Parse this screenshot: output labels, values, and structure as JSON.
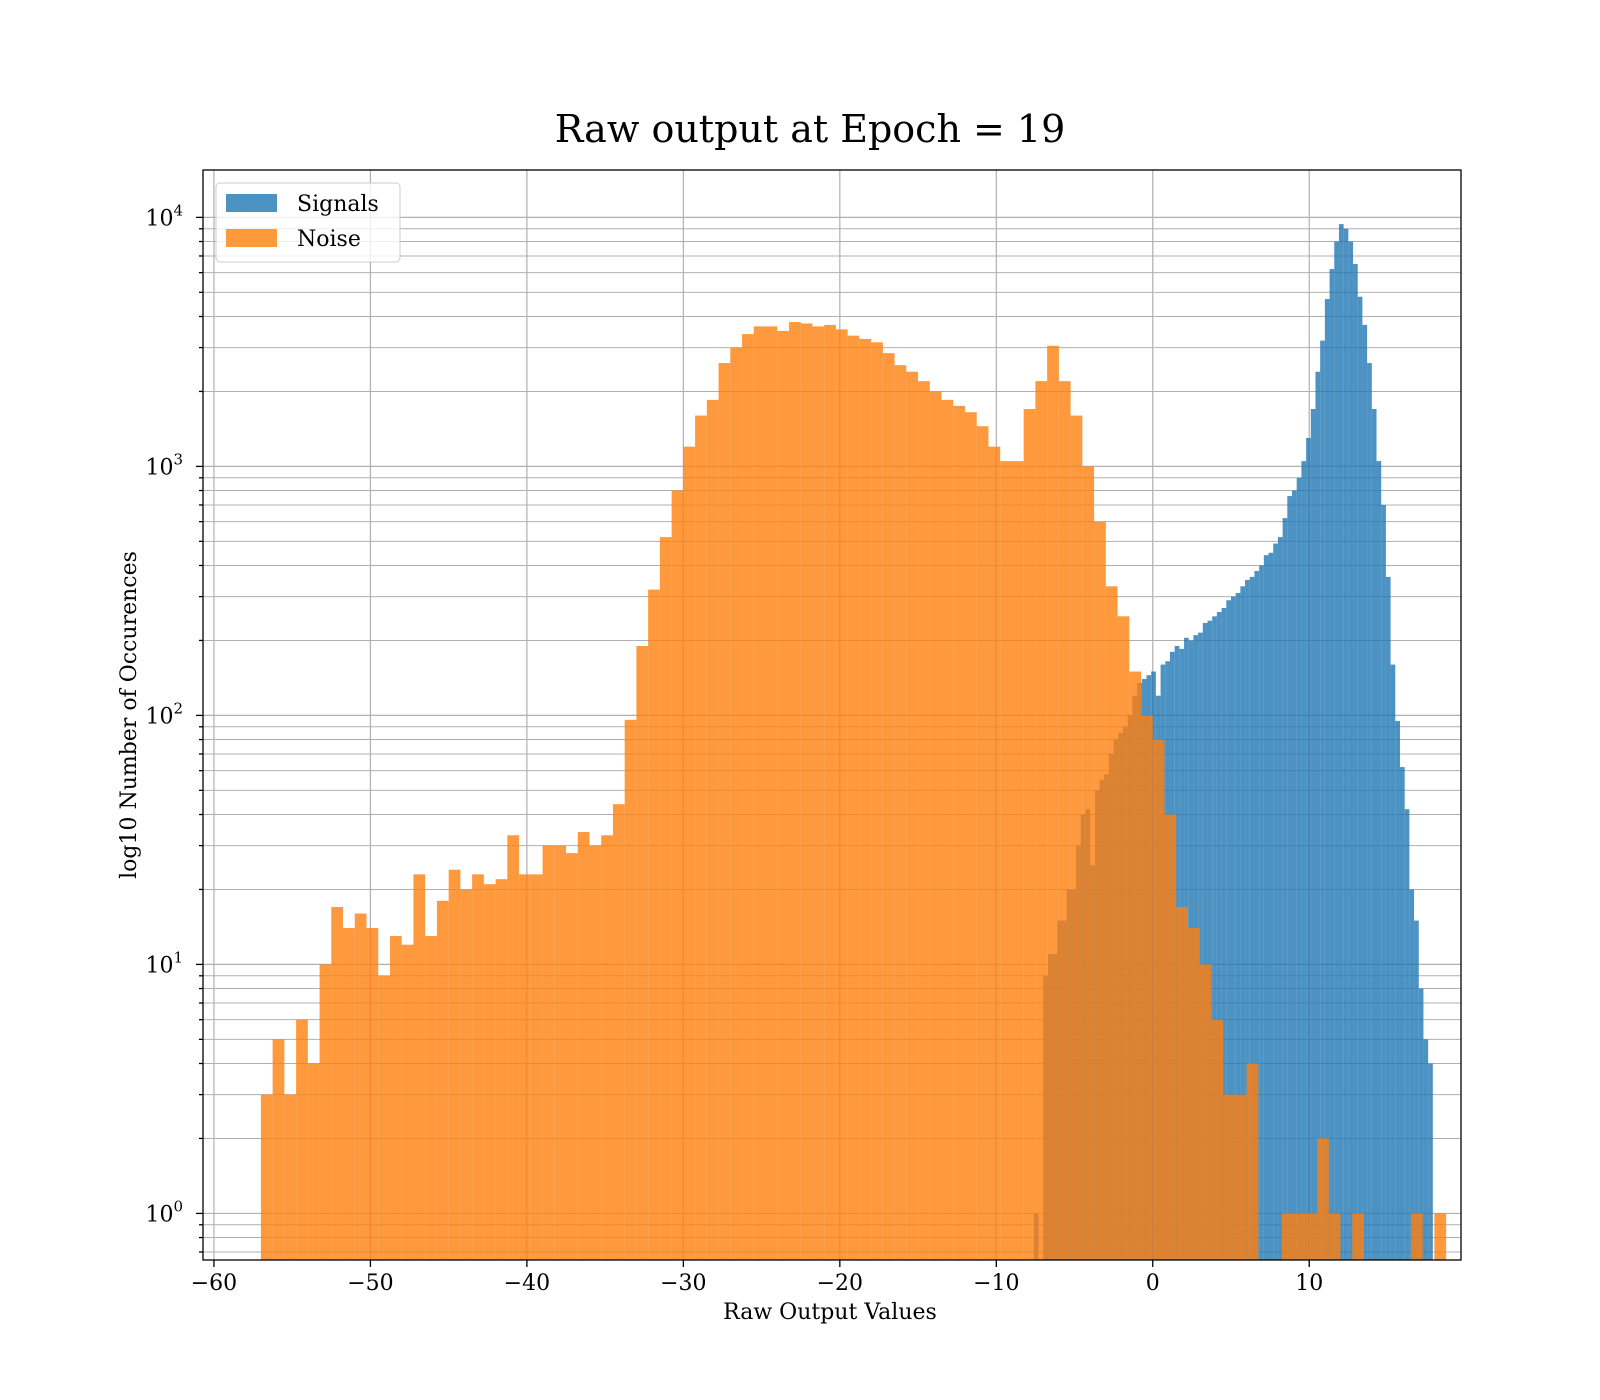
{
  "chart_data": {
    "type": "bar",
    "title": "Raw output at Epoch = 19",
    "xlabel": "Raw Output Values",
    "ylabel": "log10 Number of Occurences",
    "xlim": [
      -60.7,
      19.7
    ],
    "ylim": [
      0.65,
      15500
    ],
    "yscale": "log",
    "grid": true,
    "legend_position": "top-left",
    "x_ticks": [
      -60,
      -50,
      -40,
      -30,
      -20,
      -10,
      0,
      10
    ],
    "x_tick_labels": [
      "−60",
      "−50",
      "−40",
      "−30",
      "−20",
      "−10",
      "0",
      "10"
    ],
    "y_ticks": [
      {
        "value": 1,
        "base": "10",
        "exp": "0"
      },
      {
        "value": 10,
        "base": "10",
        "exp": "1"
      },
      {
        "value": 100,
        "base": "10",
        "exp": "2"
      },
      {
        "value": 1000,
        "base": "10",
        "exp": "3"
      },
      {
        "value": 10000,
        "base": "10",
        "exp": "4"
      }
    ],
    "series": [
      {
        "name": "Signals",
        "color": "#1f77b4",
        "opacity": 0.8,
        "bins": [
          [
            -7.6,
            -7.3,
            1
          ],
          [
            -7.0,
            -6.7,
            9
          ],
          [
            -6.7,
            -6.4,
            11
          ],
          [
            -6.4,
            -6.1,
            11
          ],
          [
            -6.1,
            -5.8,
            15
          ],
          [
            -5.8,
            -5.5,
            15
          ],
          [
            -5.5,
            -5.2,
            20
          ],
          [
            -5.2,
            -4.9,
            20
          ],
          [
            -4.9,
            -4.6,
            30
          ],
          [
            -4.6,
            -4.3,
            40
          ],
          [
            -4.3,
            -4.0,
            42
          ],
          [
            -4.0,
            -3.7,
            25
          ],
          [
            -3.7,
            -3.4,
            50
          ],
          [
            -3.4,
            -3.1,
            55
          ],
          [
            -3.1,
            -2.8,
            58
          ],
          [
            -2.8,
            -2.5,
            70
          ],
          [
            -2.5,
            -2.2,
            80
          ],
          [
            -2.2,
            -1.9,
            85
          ],
          [
            -1.9,
            -1.6,
            90
          ],
          [
            -1.6,
            -1.3,
            100
          ],
          [
            -1.3,
            -1.0,
            120
          ],
          [
            -1.0,
            -0.7,
            135
          ],
          [
            -0.7,
            -0.4,
            140
          ],
          [
            -0.4,
            -0.1,
            145
          ],
          [
            -0.1,
            0.2,
            150
          ],
          [
            0.2,
            0.5,
            120
          ],
          [
            0.5,
            0.8,
            160
          ],
          [
            0.8,
            1.1,
            165
          ],
          [
            1.1,
            1.4,
            180
          ],
          [
            1.4,
            1.7,
            190
          ],
          [
            1.7,
            2.0,
            185
          ],
          [
            2.0,
            2.3,
            205
          ],
          [
            2.3,
            2.6,
            200
          ],
          [
            2.6,
            2.9,
            210
          ],
          [
            2.9,
            3.2,
            215
          ],
          [
            3.2,
            3.5,
            235
          ],
          [
            3.5,
            3.8,
            240
          ],
          [
            3.8,
            4.1,
            250
          ],
          [
            4.1,
            4.4,
            260
          ],
          [
            4.4,
            4.7,
            270
          ],
          [
            4.7,
            5.0,
            290
          ],
          [
            5.0,
            5.3,
            300
          ],
          [
            5.3,
            5.6,
            310
          ],
          [
            5.6,
            5.9,
            330
          ],
          [
            5.9,
            6.2,
            350
          ],
          [
            6.2,
            6.5,
            360
          ],
          [
            6.5,
            6.8,
            380
          ],
          [
            6.8,
            7.1,
            400
          ],
          [
            7.1,
            7.4,
            440
          ],
          [
            7.4,
            7.7,
            450
          ],
          [
            7.7,
            8.0,
            490
          ],
          [
            8.0,
            8.3,
            520
          ],
          [
            8.3,
            8.6,
            620
          ],
          [
            8.6,
            8.9,
            760
          ],
          [
            8.9,
            9.2,
            800
          ],
          [
            9.2,
            9.5,
            900
          ],
          [
            9.5,
            9.8,
            1050
          ],
          [
            9.8,
            10.1,
            1300
          ],
          [
            10.1,
            10.4,
            1700
          ],
          [
            10.4,
            10.7,
            2400
          ],
          [
            10.7,
            11.0,
            3200
          ],
          [
            11.0,
            11.3,
            4700
          ],
          [
            11.3,
            11.6,
            6200
          ],
          [
            11.6,
            11.9,
            8000
          ],
          [
            11.9,
            12.2,
            9400
          ],
          [
            12.2,
            12.5,
            9000
          ],
          [
            12.5,
            12.8,
            8000
          ],
          [
            12.8,
            13.1,
            6500
          ],
          [
            13.1,
            13.4,
            4800
          ],
          [
            13.4,
            13.7,
            3700
          ],
          [
            13.7,
            14.0,
            2600
          ],
          [
            14.0,
            14.3,
            1700
          ],
          [
            14.3,
            14.6,
            1050
          ],
          [
            14.6,
            14.9,
            700
          ],
          [
            14.9,
            15.2,
            360
          ],
          [
            15.2,
            15.5,
            160
          ],
          [
            15.5,
            15.8,
            95
          ],
          [
            15.8,
            16.1,
            62
          ],
          [
            16.1,
            16.4,
            42
          ],
          [
            16.4,
            16.7,
            20
          ],
          [
            16.7,
            17.0,
            15
          ],
          [
            17.0,
            17.3,
            8
          ],
          [
            17.3,
            17.6,
            5
          ],
          [
            17.6,
            17.9,
            4
          ]
        ]
      },
      {
        "name": "Noise",
        "color": "#ff7f0e",
        "opacity": 0.8,
        "bins": [
          [
            -57.0,
            -56.25,
            3
          ],
          [
            -56.25,
            -55.5,
            5
          ],
          [
            -55.5,
            -54.75,
            3
          ],
          [
            -54.75,
            -54.0,
            6
          ],
          [
            -54.0,
            -53.25,
            4
          ],
          [
            -53.25,
            -52.5,
            10
          ],
          [
            -52.5,
            -51.75,
            17
          ],
          [
            -51.75,
            -51.0,
            14
          ],
          [
            -51.0,
            -50.25,
            16
          ],
          [
            -50.25,
            -49.5,
            14
          ],
          [
            -49.5,
            -48.75,
            9
          ],
          [
            -48.75,
            -48.0,
            13
          ],
          [
            -48.0,
            -47.25,
            12
          ],
          [
            -47.25,
            -46.5,
            23
          ],
          [
            -46.5,
            -45.75,
            13
          ],
          [
            -45.75,
            -45.0,
            18
          ],
          [
            -45.0,
            -44.25,
            24
          ],
          [
            -44.25,
            -43.5,
            20
          ],
          [
            -43.5,
            -42.75,
            23
          ],
          [
            -42.75,
            -42.0,
            21
          ],
          [
            -42.0,
            -41.25,
            22
          ],
          [
            -41.25,
            -40.5,
            33
          ],
          [
            -40.5,
            -39.75,
            23
          ],
          [
            -39.75,
            -39.0,
            23
          ],
          [
            -39.0,
            -38.25,
            30
          ],
          [
            -38.25,
            -37.5,
            30
          ],
          [
            -37.5,
            -36.75,
            28
          ],
          [
            -36.75,
            -36.0,
            34
          ],
          [
            -36.0,
            -35.25,
            30
          ],
          [
            -35.25,
            -34.5,
            33
          ],
          [
            -34.5,
            -33.75,
            44
          ],
          [
            -33.75,
            -33.0,
            96
          ],
          [
            -33.0,
            -32.25,
            190
          ],
          [
            -32.25,
            -31.5,
            320
          ],
          [
            -31.5,
            -30.75,
            520
          ],
          [
            -30.75,
            -30.0,
            800
          ],
          [
            -30.0,
            -29.25,
            1200
          ],
          [
            -29.25,
            -28.5,
            1600
          ],
          [
            -28.5,
            -27.75,
            1850
          ],
          [
            -27.75,
            -27.0,
            2600
          ],
          [
            -27.0,
            -26.25,
            3000
          ],
          [
            -26.25,
            -25.5,
            3400
          ],
          [
            -25.5,
            -24.75,
            3650
          ],
          [
            -24.75,
            -24.0,
            3650
          ],
          [
            -24.0,
            -23.25,
            3500
          ],
          [
            -23.25,
            -22.5,
            3800
          ],
          [
            -22.5,
            -21.75,
            3750
          ],
          [
            -21.75,
            -21.0,
            3650
          ],
          [
            -21.0,
            -20.25,
            3700
          ],
          [
            -20.25,
            -19.5,
            3550
          ],
          [
            -19.5,
            -18.75,
            3350
          ],
          [
            -18.75,
            -18.0,
            3250
          ],
          [
            -18.0,
            -17.25,
            3150
          ],
          [
            -17.25,
            -16.5,
            2850
          ],
          [
            -16.5,
            -15.75,
            2550
          ],
          [
            -15.75,
            -15.0,
            2400
          ],
          [
            -15.0,
            -14.25,
            2200
          ],
          [
            -14.25,
            -13.5,
            2000
          ],
          [
            -13.5,
            -12.75,
            1850
          ],
          [
            -12.75,
            -12.0,
            1750
          ],
          [
            -12.0,
            -11.25,
            1650
          ],
          [
            -11.25,
            -10.5,
            1450
          ],
          [
            -10.5,
            -9.75,
            1200
          ],
          [
            -9.75,
            -9.0,
            1050
          ],
          [
            -9.0,
            -8.25,
            1050
          ],
          [
            -8.25,
            -7.5,
            1700
          ],
          [
            -7.5,
            -6.75,
            2200
          ],
          [
            -6.75,
            -6.0,
            3050
          ],
          [
            -6.0,
            -5.25,
            2200
          ],
          [
            -5.25,
            -4.5,
            1600
          ],
          [
            -4.5,
            -3.75,
            1000
          ],
          [
            -3.75,
            -3.0,
            600
          ],
          [
            -3.0,
            -2.25,
            330
          ],
          [
            -2.25,
            -1.5,
            250
          ],
          [
            -1.5,
            -0.75,
            150
          ],
          [
            -0.75,
            0.0,
            100
          ],
          [
            0.0,
            0.75,
            80
          ],
          [
            0.75,
            1.5,
            40
          ],
          [
            1.5,
            2.25,
            17
          ],
          [
            2.25,
            3.0,
            14
          ],
          [
            3.0,
            3.75,
            10
          ],
          [
            3.75,
            4.5,
            6
          ],
          [
            4.5,
            5.25,
            3
          ],
          [
            5.25,
            6.0,
            3
          ],
          [
            6.0,
            6.75,
            4
          ],
          [
            8.25,
            9.0,
            1
          ],
          [
            9.0,
            9.75,
            1
          ],
          [
            9.75,
            10.5,
            1
          ],
          [
            10.5,
            11.25,
            2
          ],
          [
            11.25,
            12.0,
            1
          ],
          [
            12.75,
            13.5,
            1
          ],
          [
            16.5,
            17.25,
            1
          ],
          [
            18.0,
            18.75,
            1
          ]
        ]
      }
    ]
  }
}
